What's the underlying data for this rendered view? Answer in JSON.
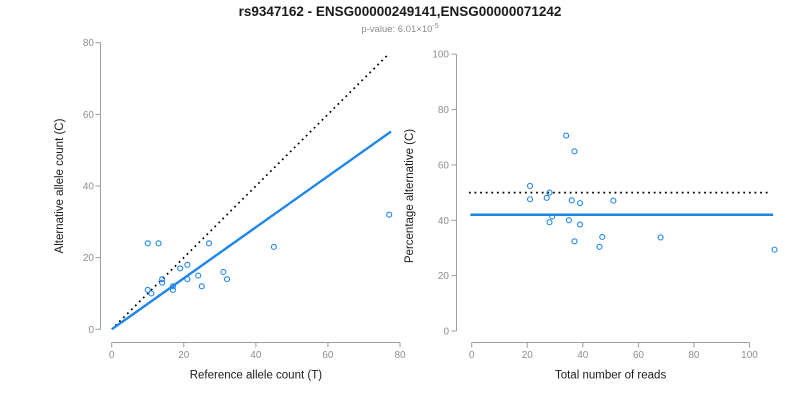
{
  "title": "rs9347162 - ENSG00000249141,ENSG00000071242",
  "subtitle_base": "p-value: 6.01×10",
  "subtitle_exponent": "-5",
  "colors": {
    "accent_blue": "#1E86E8",
    "dotted_black": "#000000",
    "axis_gray": "#9c9c9c",
    "tick_label_gray": "#8e8e8e"
  },
  "chart_data": [
    {
      "type": "scatter",
      "xlabel": "Reference allele count (T)",
      "ylabel": "Alternative allele count (C)",
      "xlim": [
        0,
        80
      ],
      "ylim": [
        0,
        80
      ],
      "xticks": [
        0,
        20,
        40,
        60,
        80
      ],
      "yticks": [
        0,
        20,
        40,
        60,
        80
      ],
      "grid": false,
      "points": [
        [
          10,
          24
        ],
        [
          13,
          24
        ],
        [
          27,
          24
        ],
        [
          45,
          23
        ],
        [
          77,
          32
        ],
        [
          10,
          11
        ],
        [
          11,
          10
        ],
        [
          14,
          13
        ],
        [
          14,
          14
        ],
        [
          17,
          11
        ],
        [
          17,
          12
        ],
        [
          19,
          17
        ],
        [
          21,
          18
        ],
        [
          21,
          14
        ],
        [
          24,
          15
        ],
        [
          25,
          12
        ],
        [
          31,
          16
        ],
        [
          32,
          14
        ]
      ],
      "lines": [
        {
          "name": "identity-line",
          "style": "dotted",
          "color": "#000000",
          "from": [
            1,
            1
          ],
          "to": [
            77,
            77
          ]
        },
        {
          "name": "regression-line",
          "style": "solid",
          "color": "#1E86E8",
          "from": [
            0,
            0
          ],
          "to": [
            77.5,
            55.2
          ]
        }
      ]
    },
    {
      "type": "scatter",
      "xlabel": "Total number of reads",
      "ylabel": "Percentage alternative (C)",
      "xlim": [
        0,
        110
      ],
      "ylim": [
        0,
        100
      ],
      "xticks": [
        0,
        20,
        40,
        60,
        80,
        100
      ],
      "yticks": [
        0,
        20,
        40,
        60,
        80,
        100
      ],
      "grid": false,
      "points": [
        [
          34,
          70.6
        ],
        [
          37,
          64.9
        ],
        [
          51,
          47.1
        ],
        [
          68,
          33.8
        ],
        [
          109,
          29.4
        ],
        [
          21,
          52.4
        ],
        [
          21,
          47.6
        ],
        [
          27,
          48.1
        ],
        [
          28,
          50.0
        ],
        [
          28,
          39.3
        ],
        [
          29,
          41.4
        ],
        [
          36,
          47.2
        ],
        [
          39,
          46.2
        ],
        [
          35,
          40.0
        ],
        [
          39,
          38.5
        ],
        [
          37,
          32.4
        ],
        [
          47,
          34.0
        ],
        [
          46,
          30.4
        ]
      ],
      "lines": [
        {
          "name": "null-line",
          "style": "dotted",
          "color": "#000000",
          "from": [
            -1,
            50
          ],
          "to": [
            107,
            50
          ]
        },
        {
          "name": "mean-line",
          "style": "solid",
          "color": "#1E86E8",
          "from": [
            -0.5,
            42
          ],
          "to": [
            108.5,
            42
          ]
        }
      ]
    }
  ]
}
